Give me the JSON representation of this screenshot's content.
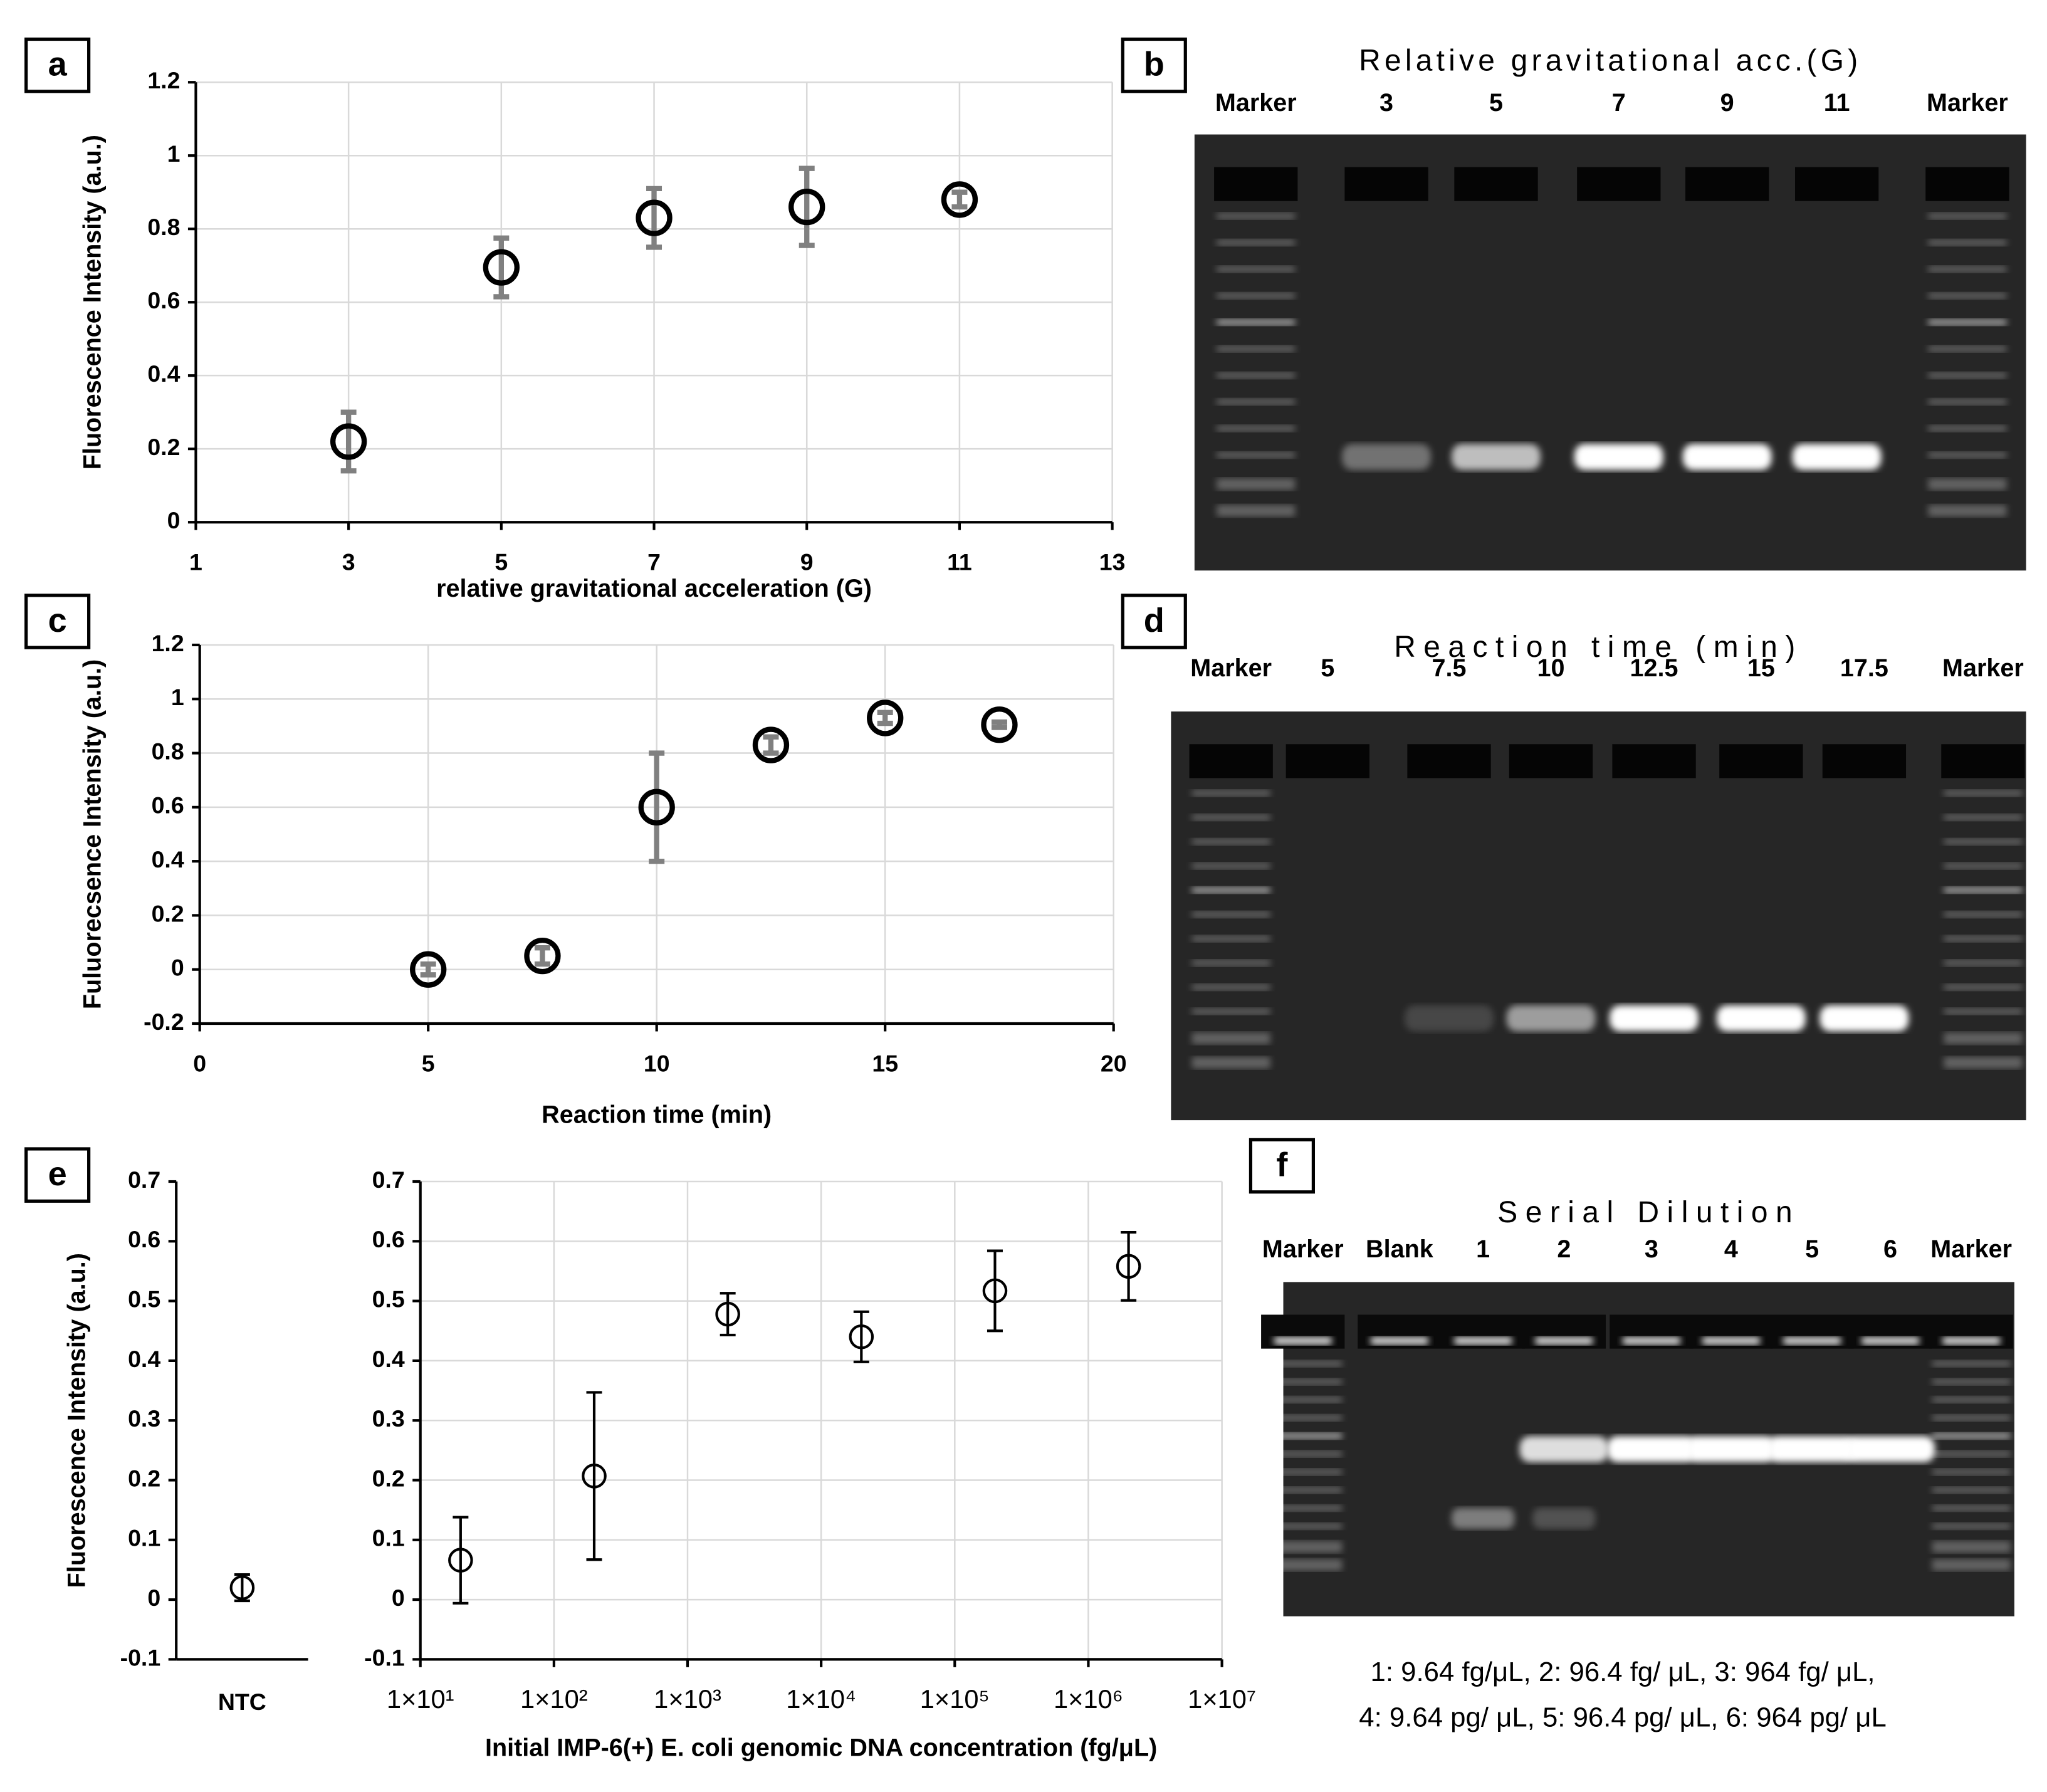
{
  "panels": [
    "a",
    "b",
    "c",
    "d",
    "e",
    "f"
  ],
  "chart_data": [
    {
      "type": "scatter",
      "x": [
        3,
        5,
        7,
        9,
        11
      ],
      "values": [
        0.22,
        0.695,
        0.83,
        0.86,
        0.88
      ],
      "errors": [
        0.08,
        0.08,
        0.08,
        0.105,
        0.02
      ],
      "color": "#000000",
      "error_color": "#808080",
      "xlim": [
        1,
        13
      ],
      "xticks": [
        1,
        3,
        5,
        7,
        9,
        11,
        13
      ],
      "ylim": [
        0,
        1.2
      ],
      "yticks": [
        0,
        0.2,
        0.4,
        0.6,
        0.8,
        1,
        1.2
      ],
      "grid": true,
      "xlabel": "relative gravitational acceleration (G)",
      "ylabel": "Fluorescence Intensity (a.u.)"
    },
    {
      "type": "scatter",
      "x": [
        5,
        7.5,
        10,
        12.5,
        15,
        17.5
      ],
      "values": [
        0,
        0.05,
        0.6,
        0.83,
        0.93,
        0.905
      ],
      "errors": [
        0.02,
        0.03,
        0.2,
        0.03,
        0.02,
        0.01
      ],
      "color": "#000000",
      "error_color": "#808080",
      "xlim": [
        0,
        20
      ],
      "xticks": [
        0,
        5,
        10,
        15,
        20
      ],
      "ylim": [
        -0.2,
        1.2
      ],
      "yticks": [
        -0.2,
        0,
        0.2,
        0.4,
        0.6,
        0.8,
        1,
        1.2
      ],
      "grid": true,
      "xlabel": "Reaction time (min)",
      "ylabel": "Fuluorecsence Intensity (a.u.)"
    },
    {
      "type": "scatter",
      "categories": [
        "NTC"
      ],
      "values": [
        0.02
      ],
      "errors": [
        0.022
      ],
      "color": "#000000",
      "error_color": "#000000",
      "ylim": [
        -0.1,
        0.7
      ],
      "yticks": [
        -0.1,
        0,
        0.1,
        0.2,
        0.3,
        0.4,
        0.5,
        0.6,
        0.7
      ],
      "grid": false,
      "ylabel": "Fluorescence Intensity (a.u.)"
    },
    {
      "type": "scatter",
      "x": [
        20,
        200,
        2000,
        20000,
        200000,
        2000000
      ],
      "values": [
        0.066,
        0.207,
        0.478,
        0.44,
        0.517,
        0.558
      ],
      "errors": [
        0.072,
        0.14,
        0.035,
        0.042,
        0.067,
        0.057
      ],
      "color": "#000000",
      "error_color": "#000000",
      "xscale": "log",
      "xlim": [
        10,
        10000000
      ],
      "xticks": [
        {
          "value": 10,
          "label": "1×10¹"
        },
        {
          "value": 100,
          "label": "1×10²"
        },
        {
          "value": 1000,
          "label": "1×10³"
        },
        {
          "value": 10000,
          "label": "1×10⁴"
        },
        {
          "value": 100000,
          "label": "1×10⁵"
        },
        {
          "value": 1000000,
          "label": "1×10⁶"
        },
        {
          "value": 10000000,
          "label": "1×10⁷"
        }
      ],
      "ylim": [
        -0.1,
        0.7
      ],
      "yticks": [
        -0.1,
        0,
        0.1,
        0.2,
        0.3,
        0.4,
        0.5,
        0.6,
        0.7
      ],
      "grid": true,
      "xlabel": "Initial IMP-6(+) E. coli genomic DNA concentration (fg/μL)"
    }
  ],
  "gels": [
    {
      "title": "Relative gravitational acc.(G)",
      "lanes": [
        "Marker",
        "3",
        "5",
        "7",
        "9",
        "11",
        "Marker"
      ]
    },
    {
      "title": "Reaction time (min)",
      "lanes": [
        "Marker",
        "5",
        "7.5",
        "10",
        "12.5",
        "15",
        "17.5",
        "Marker"
      ]
    },
    {
      "title": "Serial Dilution",
      "lanes": [
        "Marker",
        "Blank",
        "1",
        "2",
        "3",
        "4",
        "5",
        "6",
        "Marker"
      ],
      "caption": [
        "1: 9.64 fg/μL, 2: 96.4 fg/ μL, 3: 964 fg/ μL,",
        "4: 9.64 pg/ μL, 5: 96.4 pg/ μL, 6: 964 pg/ μL"
      ]
    }
  ]
}
